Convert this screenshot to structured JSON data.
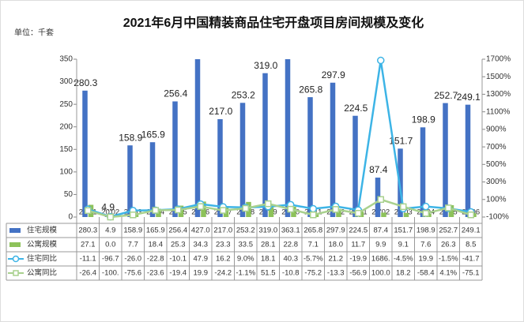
{
  "chart_data": {
    "type": "bar-line-table",
    "title": "2021年6月中国精装商品住宅开盘项目房间规模及变化",
    "unit_label": "单位：千套",
    "categories": [
      "20'01",
      "20'02",
      "20'03",
      "20'04",
      "20'05",
      "20'06",
      "20'07",
      "20'08",
      "20'09",
      "20'10",
      "20'11",
      "20'12",
      "21'01",
      "21'02",
      "21'03",
      "21'04",
      "21'05",
      "21'06"
    ],
    "ylim": [
      0,
      350
    ],
    "yticks": [
      0,
      50,
      100,
      150,
      200,
      250,
      300,
      350
    ],
    "y2lim": [
      -100,
      1700
    ],
    "y2ticks": [
      {
        "value": -100,
        "label": "-100%"
      },
      {
        "value": 100,
        "label": "100%"
      },
      {
        "value": 300,
        "label": "300%"
      },
      {
        "value": 500,
        "label": "500%"
      },
      {
        "value": 700,
        "label": "700%"
      },
      {
        "value": 900,
        "label": "900%"
      },
      {
        "value": 1100,
        "label": "1100%"
      },
      {
        "value": 1300,
        "label": "1300%"
      },
      {
        "value": 1500,
        "label": "1500%"
      },
      {
        "value": 1700,
        "label": "1700%"
      }
    ],
    "series": [
      {
        "name": "住宅规模",
        "kind": "bar",
        "color": "#4472c4",
        "values": [
          280.3,
          4.9,
          158.9,
          165.9,
          256.4,
          427.0,
          217.0,
          253.2,
          319.0,
          363.1,
          265.8,
          297.9,
          224.5,
          87.4,
          151.7,
          198.9,
          252.7,
          249.1
        ],
        "value_labels": [
          "280.3",
          "4.9",
          "158.9",
          "165.9",
          "256.4",
          "427.0",
          "217.0",
          "253.2",
          "319.0",
          "363.1",
          "265.8",
          "297.9",
          "224.5",
          "87.4",
          "151.7",
          "198.9",
          "252.7",
          "249.1"
        ]
      },
      {
        "name": "公寓规模",
        "kind": "bar",
        "color": "#8dc25a",
        "values": [
          27.1,
          0.0,
          7.7,
          18.4,
          25.3,
          34.3,
          23.3,
          33.5,
          28.1,
          22.8,
          7.1,
          18.0,
          11.7,
          9.9,
          9.1,
          7.6,
          26.3,
          8.5
        ],
        "value_labels": [
          "27.1",
          "0.0",
          "7.7",
          "18.4",
          "25.3",
          "34.3",
          "23.3",
          "33.5",
          "28.1",
          "22.8",
          "7.1",
          "18.0",
          "11.7",
          "9.9",
          "9.1",
          "7.6",
          "26.3",
          "8.5"
        ]
      },
      {
        "name": "住宅同比",
        "kind": "line",
        "axis": "y2",
        "color": "#3db4e6",
        "values": [
          -11.1,
          -96.7,
          -26.0,
          -22.8,
          -10.1,
          47.9,
          16.2,
          9.0,
          18.1,
          40.3,
          -5.7,
          21.2,
          -19.9,
          1686,
          -4.5,
          19.9,
          -1.5,
          -41.7
        ],
        "value_labels": [
          "-11.1",
          "-96.7",
          "-26.0",
          "-22.8",
          "-10.1",
          "47.9",
          "16.2",
          "9.0%",
          "18.1",
          "40.3",
          "-5.7%",
          "21.2",
          "-19.9",
          "1686.",
          "-4.5%",
          "19.9",
          "-1.5%",
          "-41.7"
        ]
      },
      {
        "name": "公寓同比",
        "kind": "line",
        "axis": "y2",
        "color": "#a9d18e",
        "values": [
          -26.4,
          -100,
          -75.6,
          -23.6,
          -19.4,
          19.9,
          -24.2,
          -1.1,
          51.5,
          -10.8,
          -75.2,
          -13.3,
          -56.9,
          100.0,
          18.2,
          -58.4,
          4.1,
          -75.1
        ],
        "value_labels": [
          "-26.4",
          "-100.",
          "-75.6",
          "-23.6",
          "-19.4",
          "19.9",
          "-24.2",
          "-1.1%",
          "51.5",
          "-10.8",
          "-75.2",
          "-13.3",
          "-56.9",
          "100.0",
          "18.2",
          "-58.4",
          "4.1%",
          "-75.1"
        ]
      }
    ]
  }
}
